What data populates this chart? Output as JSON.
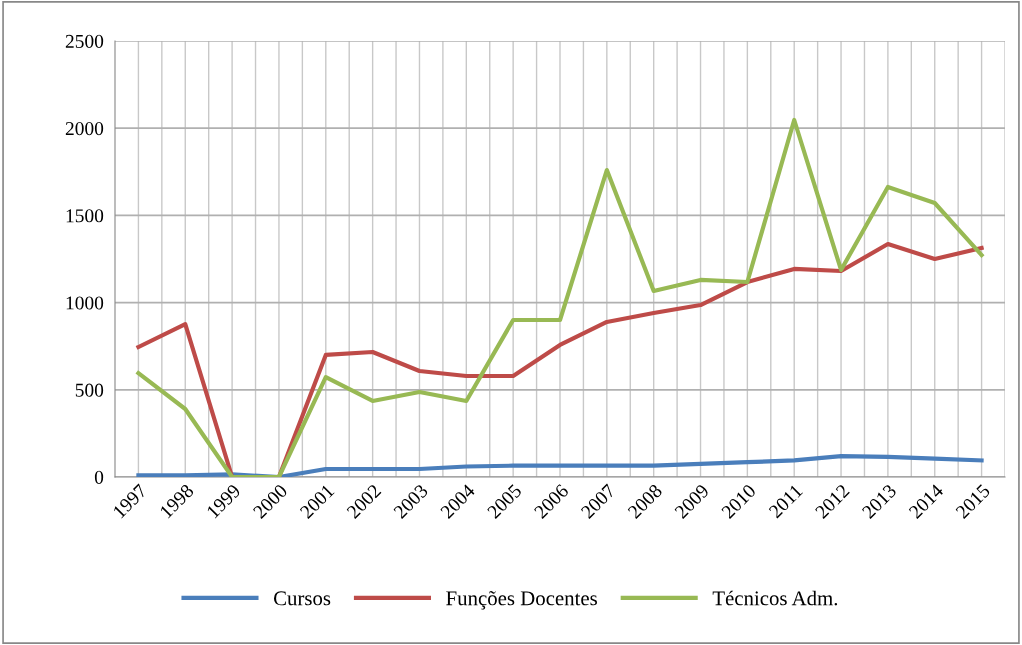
{
  "chart_data": {
    "type": "line",
    "categories": [
      "1997",
      "1998",
      "1999",
      "2000",
      "2001",
      "2002",
      "2003",
      "2004",
      "2005",
      "2006",
      "2007",
      "2008",
      "2009",
      "2010",
      "2011",
      "2012",
      "2013",
      "2014",
      "2015"
    ],
    "series": [
      {
        "name": "Cursos",
        "color": "#4a7ebb",
        "values": [
          10,
          10,
          15,
          0,
          46,
          46,
          46,
          60,
          65,
          65,
          65,
          65,
          75,
          85,
          95,
          120,
          115,
          105,
          95
        ]
      },
      {
        "name": "Funções Docentes",
        "color": "#be4b48",
        "values": [
          745,
          877,
          0,
          0,
          700,
          717,
          608,
          579,
          579,
          757,
          889,
          940,
          986,
          1118,
          1193,
          1181,
          1336,
          1250,
          1313
        ]
      },
      {
        "name": "Técnicos Adm.",
        "color": "#98b954",
        "values": [
          596,
          390,
          0,
          0,
          573,
          436,
          487,
          436,
          900,
          900,
          1760,
          1067,
          1130,
          1118,
          2047,
          1187,
          1663,
          1571,
          1273
        ]
      }
    ],
    "ylim": [
      0,
      2500
    ],
    "yticks": [
      0,
      500,
      1000,
      1500,
      2000,
      2500
    ],
    "grid": true,
    "legend": "bottom",
    "marker": "none",
    "line_style": "solid"
  }
}
